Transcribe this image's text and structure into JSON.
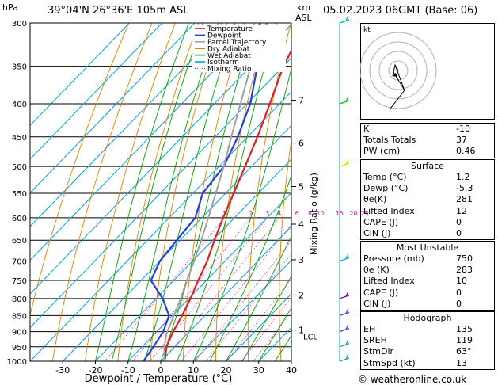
{
  "header": {
    "location": "39°04'N  26°36'E  105m  ASL",
    "datetime": "05.02.2023  06GMT  (Base: 06)",
    "hpa_unit": "hPa",
    "km_unit": "km",
    "asl_unit": "ASL"
  },
  "footer": {
    "copyright": "© weatheronline.co.uk"
  },
  "chart_data": {
    "type": "line",
    "title": "",
    "xlabel": "Dewpoint / Temperature (°C)",
    "ylabel": "hPa",
    "y2label": "Mixing Ratio (g/kg)",
    "x_ticks": [
      -30,
      -20,
      -10,
      0,
      10,
      20,
      30,
      40
    ],
    "pressure_levels": [
      300,
      350,
      400,
      450,
      500,
      550,
      600,
      650,
      700,
      750,
      800,
      850,
      900,
      950,
      1000
    ],
    "ylim": [
      1000,
      300
    ],
    "xlim": [
      -40,
      40
    ],
    "skew": "skew-T log-p",
    "km_ticks": [
      {
        "label": "1",
        "p": 895
      },
      {
        "label": "2",
        "p": 790
      },
      {
        "label": "3",
        "p": 697
      },
      {
        "label": "4",
        "p": 614
      },
      {
        "label": "5",
        "p": 537
      },
      {
        "label": "6",
        "p": 460
      },
      {
        "label": "7",
        "p": 395
      }
    ],
    "lcl": {
      "label": "LCL",
      "p": 905
    },
    "mixing_ratio_labels": [
      "1",
      "2",
      "3",
      "4",
      "6",
      "8",
      "10",
      "15",
      "20",
      "25"
    ],
    "legend": {
      "placement": "top-left",
      "entries": [
        {
          "name": "Temperature",
          "color": "#e02020"
        },
        {
          "name": "Dewpoint",
          "color": "#2040e0"
        },
        {
          "name": "Parcel Trajectory",
          "color": "#a0a0a0"
        },
        {
          "name": "Dry Adiabat",
          "color": "#e08000"
        },
        {
          "name": "Wet Adiabat",
          "color": "#00a000"
        },
        {
          "name": "Isotherm",
          "color": "#00a0e0"
        },
        {
          "name": "Mixing Ratio",
          "color": "#e000a0"
        }
      ]
    },
    "series": [
      {
        "name": "Temperature",
        "points": [
          [
            1000,
            1.2
          ],
          [
            950,
            -2.5
          ],
          [
            900,
            -5.0
          ],
          [
            850,
            -7.0
          ],
          [
            800,
            -9.5
          ],
          [
            750,
            -12.5
          ],
          [
            700,
            -15.5
          ],
          [
            650,
            -19.5
          ],
          [
            600,
            -23.5
          ],
          [
            550,
            -27.5
          ],
          [
            500,
            -32.0
          ],
          [
            450,
            -37.0
          ],
          [
            400,
            -43.0
          ],
          [
            350,
            -50.0
          ],
          [
            300,
            -56.0
          ]
        ]
      },
      {
        "name": "Dewpoint",
        "points": [
          [
            1000,
            -5.3
          ],
          [
            950,
            -6.5
          ],
          [
            900,
            -8.0
          ],
          [
            850,
            -11.0
          ],
          [
            800,
            -18.0
          ],
          [
            750,
            -27.0
          ],
          [
            700,
            -30.0
          ],
          [
            650,
            -31.0
          ],
          [
            600,
            -32.0
          ],
          [
            550,
            -37.0
          ],
          [
            500,
            -38.5
          ],
          [
            450,
            -43.0
          ],
          [
            400,
            -49.0
          ],
          [
            350,
            -58.0
          ],
          [
            300,
            -70.0
          ]
        ]
      },
      {
        "name": "Parcel Trajectory",
        "points": [
          [
            1000,
            1.2
          ],
          [
            950,
            -3.2
          ],
          [
            905,
            -6.5
          ],
          [
            850,
            -9.5
          ],
          [
            800,
            -12.5
          ],
          [
            750,
            -16.0
          ],
          [
            700,
            -19.5
          ],
          [
            650,
            -23.5
          ],
          [
            600,
            -28.0
          ],
          [
            550,
            -33.0
          ],
          [
            500,
            -38.5
          ],
          [
            450,
            -45.0
          ],
          [
            400,
            -52.0
          ],
          [
            350,
            -60.0
          ],
          [
            300,
            -68.0
          ]
        ]
      }
    ]
  },
  "hodograph": {
    "unit": "kt"
  },
  "indices": {
    "basic": [
      {
        "label": "K",
        "value": "-10"
      },
      {
        "label": "Totals Totals",
        "value": "37"
      },
      {
        "label": "PW (cm)",
        "value": "0.46"
      }
    ],
    "surface": {
      "title": "Surface",
      "rows": [
        {
          "label": "Temp (°C)",
          "value": "1.2"
        },
        {
          "label": "Dewp (°C)",
          "value": "-5.3"
        },
        {
          "label": "θe(K)",
          "value": "281"
        },
        {
          "label": "Lifted Index",
          "value": "12"
        },
        {
          "label": "CAPE (J)",
          "value": "0"
        },
        {
          "label": "CIN (J)",
          "value": "0"
        }
      ]
    },
    "most_unstable": {
      "title": "Most Unstable",
      "rows": [
        {
          "label": "Pressure (mb)",
          "value": "750"
        },
        {
          "label": "θe (K)",
          "value": "283"
        },
        {
          "label": "Lifted Index",
          "value": "10"
        },
        {
          "label": "CAPE (J)",
          "value": "0"
        },
        {
          "label": "CIN (J)",
          "value": "0"
        }
      ]
    },
    "hodograph": {
      "title": "Hodograph",
      "rows": [
        {
          "label": "EH",
          "value": "135"
        },
        {
          "label": "SREH",
          "value": "119"
        },
        {
          "label": "StmDir",
          "value": "63°"
        },
        {
          "label": "StmSpd (kt)",
          "value": "13"
        }
      ]
    }
  }
}
